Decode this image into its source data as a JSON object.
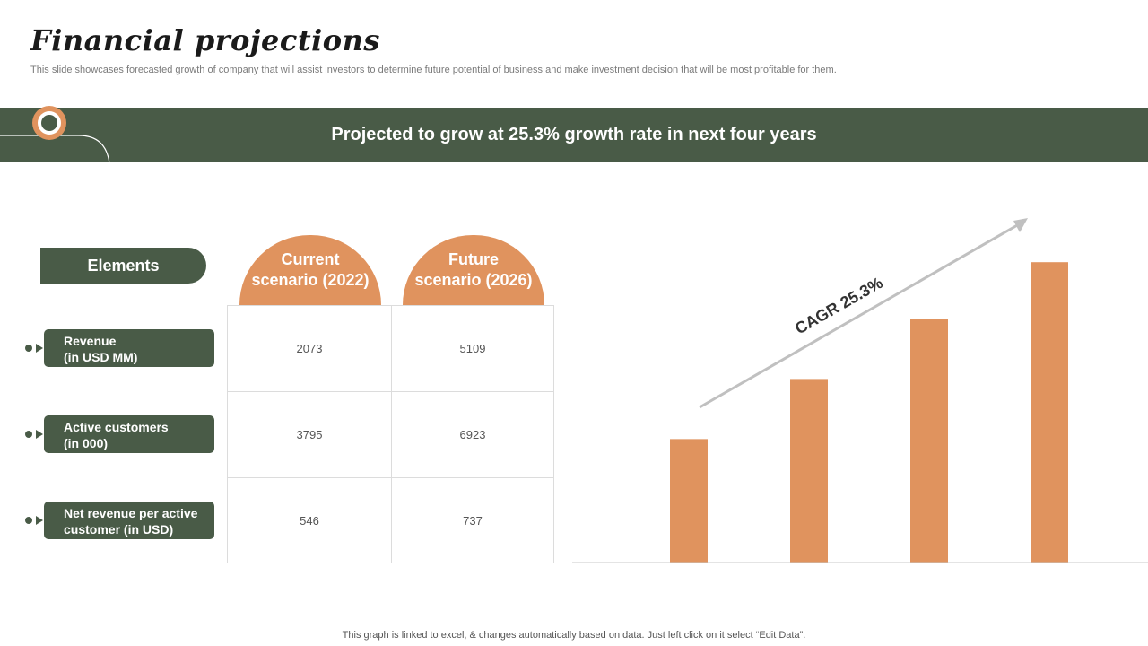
{
  "header": {
    "title": "Financial projections",
    "subtitle": "This slide showcases forecasted growth of company that will assist investors to determine future potential of business and make investment decision that will be most profitable for them."
  },
  "banner": {
    "text": "Projected to grow at 25.3% growth rate in next four years"
  },
  "colors": {
    "green": "#495b47",
    "orange": "#e0935e",
    "arrow": "#c0c0c0"
  },
  "elements": {
    "header_label": "Elements",
    "rows": [
      {
        "line1": "Revenue",
        "line2": "(in USD MM)"
      },
      {
        "line1": "Active customers",
        "line2": "(in 000)"
      },
      {
        "line1": "Net revenue per active",
        "line2": "customer (in USD)"
      }
    ]
  },
  "columns": [
    {
      "line1": "Current",
      "line2": "scenario (2022)"
    },
    {
      "line1": "Future",
      "line2": "scenario (2026)"
    }
  ],
  "table": {
    "rows": [
      [
        "2073",
        "5109"
      ],
      [
        "3795",
        "6923"
      ],
      [
        "546",
        "737"
      ]
    ]
  },
  "chart_data": {
    "type": "bar",
    "title": "",
    "categories": [
      "",
      "",
      "",
      ""
    ],
    "values": [
      37,
      55,
      73,
      90
    ],
    "ylim": [
      0,
      100
    ],
    "grid": false,
    "annotation": "CAGR 25.3%"
  },
  "footer": {
    "text": "This graph is linked to excel, & changes automatically based on data. Just left click on it select “Edit Data”."
  }
}
